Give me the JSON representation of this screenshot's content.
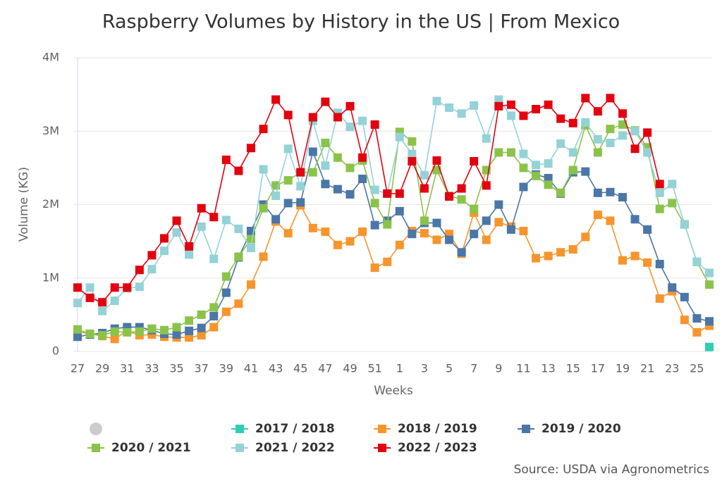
{
  "chart_data": {
    "type": "line",
    "title": "Raspberry Volumes by History in the US | From Mexico",
    "x_label": "Weeks",
    "y_label": "Volume (KG)",
    "source": "Source: USDA via Agronometrics",
    "categories": [
      "27",
      null,
      "29",
      null,
      "31",
      null,
      "33",
      null,
      "35",
      null,
      "37",
      null,
      "39",
      null,
      "41",
      null,
      "43",
      null,
      "45",
      null,
      "47",
      null,
      "49",
      null,
      "51",
      null,
      "1",
      null,
      "3",
      null,
      "5",
      null,
      "7",
      null,
      "9",
      null,
      "11",
      null,
      "13",
      null,
      "15",
      null,
      "17",
      null,
      "19",
      null,
      "21",
      null,
      "23",
      null,
      "25",
      null
    ],
    "ylim": [
      0,
      4000000
    ],
    "yticks": [
      0,
      {
        "value": 1000000,
        "label": "1M"
      },
      {
        "value": 2000000,
        "label": "2M"
      },
      {
        "value": 3000000,
        "label": "3M"
      },
      {
        "value": 4000000,
        "label": "4M"
      }
    ],
    "grid": true,
    "series": [
      {
        "name": "2017 / 2018",
        "color": "#2ecfb0",
        "values": [
          null,
          null,
          null,
          null,
          null,
          null,
          null,
          null,
          null,
          null,
          null,
          null,
          null,
          null,
          null,
          null,
          null,
          null,
          null,
          null,
          null,
          null,
          null,
          null,
          null,
          null,
          null,
          null,
          null,
          null,
          null,
          null,
          null,
          null,
          null,
          null,
          null,
          null,
          null,
          null,
          null,
          null,
          null,
          null,
          null,
          null,
          null,
          null,
          null,
          null,
          null,
          60000
        ]
      },
      {
        "name": "2018 / 2019",
        "color": "#f7952c",
        "values": [
          270000,
          240000,
          210000,
          170000,
          280000,
          220000,
          230000,
          200000,
          190000,
          190000,
          220000,
          330000,
          540000,
          650000,
          910000,
          1290000,
          1770000,
          1610000,
          1990000,
          1680000,
          1630000,
          1450000,
          1500000,
          1630000,
          1140000,
          1220000,
          1450000,
          1640000,
          1610000,
          1520000,
          1600000,
          1330000,
          1890000,
          1520000,
          1760000,
          1700000,
          1640000,
          1270000,
          1300000,
          1350000,
          1390000,
          1560000,
          1860000,
          1780000,
          1240000,
          1300000,
          1210000,
          720000,
          820000,
          430000,
          260000,
          350000
        ]
      },
      {
        "name": "2019 / 2020",
        "color": "#4a76a8",
        "values": [
          200000,
          230000,
          250000,
          310000,
          330000,
          330000,
          290000,
          240000,
          230000,
          280000,
          320000,
          480000,
          800000,
          1280000,
          1640000,
          2000000,
          1800000,
          2020000,
          2030000,
          2720000,
          2280000,
          2210000,
          2140000,
          2350000,
          1720000,
          1780000,
          1910000,
          1600000,
          1750000,
          1750000,
          1520000,
          1350000,
          1600000,
          1780000,
          2000000,
          1660000,
          2240000,
          2410000,
          2360000,
          2150000,
          2440000,
          2450000,
          2160000,
          2170000,
          2100000,
          1800000,
          1660000,
          1190000,
          870000,
          740000,
          450000,
          410000
        ]
      },
      {
        "name": "2020 / 2021",
        "color": "#8bc34a",
        "values": [
          300000,
          240000,
          220000,
          270000,
          260000,
          270000,
          310000,
          290000,
          330000,
          420000,
          500000,
          600000,
          1020000,
          1290000,
          1530000,
          1950000,
          2260000,
          2330000,
          2440000,
          2440000,
          2840000,
          2640000,
          2500000,
          2600000,
          2020000,
          1730000,
          2990000,
          2860000,
          1780000,
          2470000,
          2120000,
          2070000,
          1940000,
          2470000,
          2710000,
          2710000,
          2500000,
          2390000,
          2270000,
          2160000,
          2470000,
          3080000,
          2710000,
          3030000,
          3090000,
          3010000,
          2780000,
          1940000,
          2020000,
          1730000,
          1220000,
          910000
        ]
      },
      {
        "name": "2021 / 2022",
        "color": "#94d2d6",
        "values": [
          660000,
          870000,
          550000,
          690000,
          860000,
          880000,
          1120000,
          1370000,
          1620000,
          1320000,
          1700000,
          1260000,
          1790000,
          1670000,
          1410000,
          2480000,
          2120000,
          2760000,
          2250000,
          3140000,
          2530000,
          3250000,
          3060000,
          3140000,
          2200000,
          2150000,
          2920000,
          2690000,
          2400000,
          3410000,
          3320000,
          3240000,
          3350000,
          2900000,
          3430000,
          3210000,
          2690000,
          2540000,
          2560000,
          2830000,
          2710000,
          3120000,
          2890000,
          2840000,
          2940000,
          3000000,
          2710000,
          2160000,
          2280000,
          1730000,
          1220000,
          1070000
        ]
      },
      {
        "name": "2022 / 2023",
        "color": "#e3000f",
        "values": [
          870000,
          730000,
          670000,
          870000,
          870000,
          1110000,
          1310000,
          1540000,
          1780000,
          1430000,
          1950000,
          1830000,
          2610000,
          2460000,
          2770000,
          3030000,
          3430000,
          3220000,
          2440000,
          3190000,
          3400000,
          3190000,
          3340000,
          2640000,
          3090000,
          2150000,
          2150000,
          2590000,
          2220000,
          2600000,
          2110000,
          2220000,
          2590000,
          2260000,
          3340000,
          3360000,
          3210000,
          3300000,
          3360000,
          3170000,
          3110000,
          3450000,
          3270000,
          3450000,
          3240000,
          2760000,
          2980000,
          2280000,
          null,
          null,
          null,
          null
        ]
      }
    ]
  }
}
